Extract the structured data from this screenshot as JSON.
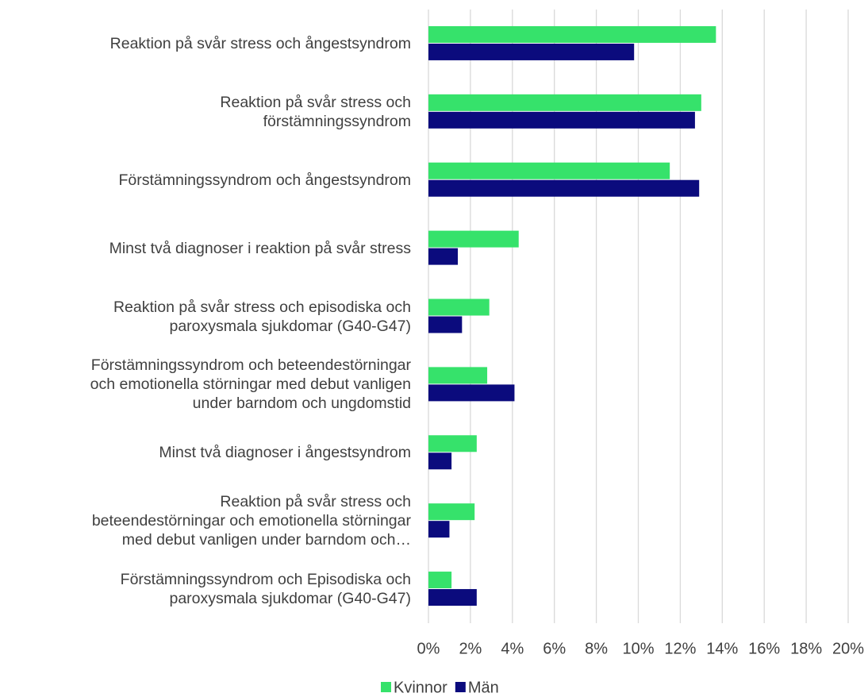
{
  "chart_data": {
    "type": "bar",
    "orientation": "horizontal",
    "categories": [
      "Reaktion på svår stress och ångestsyndrom",
      "Reaktion på svår stress och\nförstämningssyndrom",
      "Förstämningssyndrom och ångestsyndrom",
      "Minst två diagnoser i reaktion på svår stress",
      "Reaktion på svår stress och episodiska och\nparoxysmala sjukdomar (G40-G47)",
      "Förstämningssyndrom och beteendestörningar\noch emotionella störningar med debut vanligen\nunder barndom och ungdomstid",
      "Minst två diagnoser i ångestsyndrom",
      "Reaktion på svår stress och\nbeteendestörningar och emotionella störningar\nmed debut vanligen under barndom och…",
      "Förstämningssyndrom och Episodiska och\nparoxysmala sjukdomar (G40-G47)"
    ],
    "series": [
      {
        "name": "Kvinnor",
        "color": "#36e26b",
        "values": [
          13.7,
          13.0,
          11.5,
          4.3,
          2.9,
          2.8,
          2.3,
          2.2,
          1.1
        ]
      },
      {
        "name": "Män",
        "color": "#0b0b7d",
        "values": [
          9.8,
          12.7,
          12.9,
          1.4,
          1.6,
          4.1,
          1.1,
          1.0,
          2.3
        ]
      }
    ],
    "xlim": [
      0,
      20
    ],
    "xticks": [
      {
        "value": 0,
        "label": "0%"
      },
      {
        "value": 2,
        "label": "2%"
      },
      {
        "value": 4,
        "label": "4%"
      },
      {
        "value": 6,
        "label": "6%"
      },
      {
        "value": 8,
        "label": "8%"
      },
      {
        "value": 10,
        "label": "10%"
      },
      {
        "value": 12,
        "label": "12%"
      },
      {
        "value": 14,
        "label": "14%"
      },
      {
        "value": 16,
        "label": "16%"
      },
      {
        "value": 18,
        "label": "18%"
      },
      {
        "value": 20,
        "label": "20%"
      }
    ],
    "grid": true,
    "legend": "bottom"
  }
}
